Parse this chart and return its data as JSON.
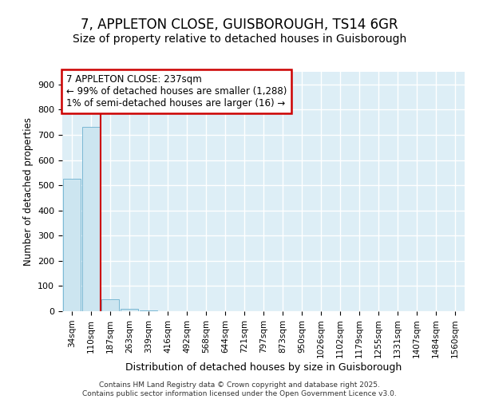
{
  "title": "7, APPLETON CLOSE, GUISBOROUGH, TS14 6GR",
  "subtitle": "Size of property relative to detached houses in Guisborough",
  "xlabel": "Distribution of detached houses by size in Guisborough",
  "ylabel": "Number of detached properties",
  "bar_categories": [
    "34sqm",
    "110sqm",
    "187sqm",
    "263sqm",
    "339sqm",
    "416sqm",
    "492sqm",
    "568sqm",
    "644sqm",
    "721sqm",
    "797sqm",
    "873sqm",
    "950sqm",
    "1026sqm",
    "1102sqm",
    "1179sqm",
    "1255sqm",
    "1331sqm",
    "1407sqm",
    "1484sqm",
    "1560sqm"
  ],
  "bar_values": [
    525,
    730,
    48,
    8,
    2,
    0,
    0,
    0,
    0,
    0,
    0,
    0,
    0,
    0,
    0,
    0,
    0,
    0,
    0,
    0,
    0
  ],
  "bar_color": "#cce5f0",
  "bar_edge_color": "#7ab8d4",
  "ylim": [
    0,
    950
  ],
  "yticks": [
    0,
    100,
    200,
    300,
    400,
    500,
    600,
    700,
    800,
    900
  ],
  "vline_x_index": 1.5,
  "vline_color": "#cc0000",
  "annotation_text": "7 APPLETON CLOSE: 237sqm\n← 99% of detached houses are smaller (1,288)\n1% of semi-detached houses are larger (16) →",
  "annotation_box_color": "#cc0000",
  "footer_text": "Contains HM Land Registry data © Crown copyright and database right 2025.\nContains public sector information licensed under the Open Government Licence v3.0.",
  "bg_color": "#ddeef6",
  "grid_color": "#ffffff",
  "fig_bg_color": "#ffffff",
  "title_fontsize": 12,
  "subtitle_fontsize": 10,
  "tick_fontsize": 7.5,
  "annot_fontsize": 8.5
}
